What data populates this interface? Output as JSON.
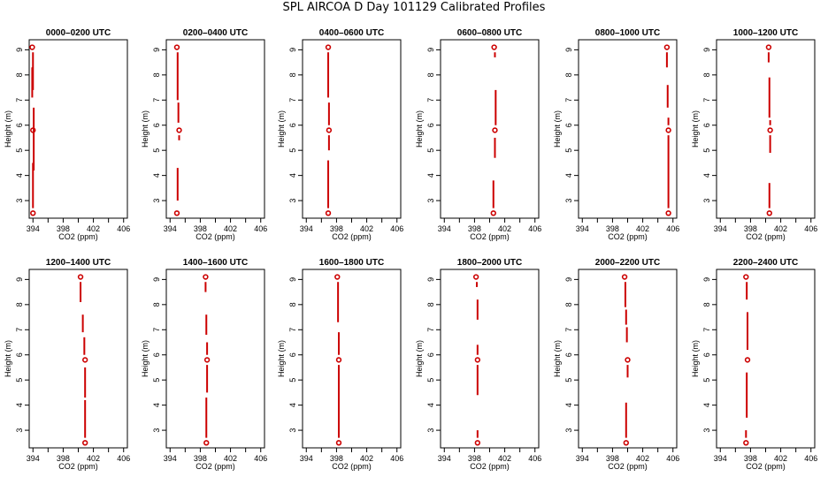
{
  "title": "SPL AIRCOA D  Day 101129  Calibrated Profiles",
  "colors": {
    "profile": "#cc0000",
    "axis": "#000000"
  },
  "chart_data": [
    {
      "type": "line",
      "title": "0000–0200 UTC",
      "xlabel": "CO2 (ppm)",
      "ylabel": "Height (m)",
      "xlim": [
        393.5,
        406.5
      ],
      "ylim": [
        2.3,
        9.4
      ],
      "xticks": [
        394,
        398,
        402,
        406
      ],
      "yticks": [
        3,
        4,
        5,
        6,
        7,
        8,
        9
      ],
      "points": [
        {
          "x": 393.9,
          "y": 9.1
        },
        {
          "x": 394.0,
          "y": 5.8
        },
        {
          "x": 394.0,
          "y": 2.5
        }
      ],
      "segments": [
        {
          "x": 394.0,
          "y0": 8.9,
          "y1": 7.4
        },
        {
          "x": 393.9,
          "y0": 8.3,
          "y1": 7.1
        },
        {
          "x": 394.1,
          "y0": 6.7,
          "y1": 4.2
        },
        {
          "x": 394.0,
          "y0": 4.5,
          "y1": 2.7
        }
      ]
    },
    {
      "type": "line",
      "title": "0200–0400 UTC",
      "xlabel": "CO2 (ppm)",
      "ylabel": "Height (m)",
      "xlim": [
        393.5,
        406.5
      ],
      "ylim": [
        2.3,
        9.4
      ],
      "xticks": [
        394,
        398,
        402,
        406
      ],
      "yticks": [
        3,
        4,
        5,
        6,
        7,
        8,
        9
      ],
      "points": [
        {
          "x": 394.9,
          "y": 9.1
        },
        {
          "x": 395.2,
          "y": 5.8
        },
        {
          "x": 394.9,
          "y": 2.5
        }
      ],
      "segments": [
        {
          "x": 395.0,
          "y0": 8.9,
          "y1": 7.0
        },
        {
          "x": 395.1,
          "y0": 6.9,
          "y1": 6.1
        },
        {
          "x": 395.2,
          "y0": 5.6,
          "y1": 5.4
        },
        {
          "x": 395.0,
          "y0": 4.3,
          "y1": 3.0
        }
      ]
    },
    {
      "type": "line",
      "title": "0400–0600 UTC",
      "xlabel": "CO2 (ppm)",
      "ylabel": "Height (m)",
      "xlim": [
        393.5,
        406.5
      ],
      "ylim": [
        2.3,
        9.4
      ],
      "xticks": [
        394,
        398,
        402,
        406
      ],
      "yticks": [
        3,
        4,
        5,
        6,
        7,
        8,
        9
      ],
      "points": [
        {
          "x": 396.9,
          "y": 9.1
        },
        {
          "x": 397.0,
          "y": 5.8
        },
        {
          "x": 396.9,
          "y": 2.5
        }
      ],
      "segments": [
        {
          "x": 396.9,
          "y0": 8.9,
          "y1": 7.1
        },
        {
          "x": 397.0,
          "y0": 6.9,
          "y1": 6.0
        },
        {
          "x": 397.0,
          "y0": 5.6,
          "y1": 5.0
        },
        {
          "x": 396.9,
          "y0": 4.6,
          "y1": 2.7
        }
      ]
    },
    {
      "type": "line",
      "title": "0600–0800 UTC",
      "xlabel": "CO2 (ppm)",
      "ylabel": "Height (m)",
      "xlim": [
        393.5,
        406.5
      ],
      "ylim": [
        2.3,
        9.4
      ],
      "xticks": [
        394,
        398,
        402,
        406
      ],
      "yticks": [
        3,
        4,
        5,
        6,
        7,
        8,
        9
      ],
      "points": [
        {
          "x": 400.6,
          "y": 9.1
        },
        {
          "x": 400.7,
          "y": 5.8
        },
        {
          "x": 400.5,
          "y": 2.5
        }
      ],
      "segments": [
        {
          "x": 400.7,
          "y0": 8.9,
          "y1": 8.7
        },
        {
          "x": 400.8,
          "y0": 7.4,
          "y1": 6.0
        },
        {
          "x": 400.7,
          "y0": 5.5,
          "y1": 4.7
        },
        {
          "x": 400.5,
          "y0": 3.8,
          "y1": 2.7
        }
      ]
    },
    {
      "type": "line",
      "title": "0800–1000 UTC",
      "xlabel": "CO2 (ppm)",
      "ylabel": "Height (m)",
      "xlim": [
        393.5,
        406.5
      ],
      "ylim": [
        2.3,
        9.4
      ],
      "xticks": [
        394,
        398,
        402,
        406
      ],
      "yticks": [
        3,
        4,
        5,
        6,
        7,
        8,
        9
      ],
      "points": [
        {
          "x": 405.2,
          "y": 9.1
        },
        {
          "x": 405.4,
          "y": 5.8
        },
        {
          "x": 405.4,
          "y": 2.5
        }
      ],
      "segments": [
        {
          "x": 405.2,
          "y0": 8.9,
          "y1": 8.3
        },
        {
          "x": 405.3,
          "y0": 7.6,
          "y1": 6.7
        },
        {
          "x": 405.4,
          "y0": 6.3,
          "y1": 6.0
        },
        {
          "x": 405.4,
          "y0": 5.6,
          "y1": 2.7
        }
      ]
    },
    {
      "type": "line",
      "title": "1000–1200 UTC",
      "xlabel": "CO2 (ppm)",
      "ylabel": "Height (m)",
      "xlim": [
        393.5,
        406.5
      ],
      "ylim": [
        2.3,
        9.4
      ],
      "xticks": [
        394,
        398,
        402,
        406
      ],
      "yticks": [
        3,
        4,
        5,
        6,
        7,
        8,
        9
      ],
      "points": [
        {
          "x": 400.4,
          "y": 9.1
        },
        {
          "x": 400.6,
          "y": 5.8
        },
        {
          "x": 400.5,
          "y": 2.5
        }
      ],
      "segments": [
        {
          "x": 400.4,
          "y0": 8.9,
          "y1": 8.5
        },
        {
          "x": 400.5,
          "y0": 7.9,
          "y1": 6.3
        },
        {
          "x": 400.6,
          "y0": 6.2,
          "y1": 6.0
        },
        {
          "x": 400.6,
          "y0": 5.6,
          "y1": 4.9
        },
        {
          "x": 400.5,
          "y0": 3.7,
          "y1": 2.7
        }
      ]
    },
    {
      "type": "line",
      "title": "1200–1400 UTC",
      "xlabel": "CO2 (ppm)",
      "ylabel": "Height (m)",
      "xlim": [
        393.5,
        406.5
      ],
      "ylim": [
        2.3,
        9.4
      ],
      "xticks": [
        394,
        398,
        402,
        406
      ],
      "yticks": [
        3,
        4,
        5,
        6,
        7,
        8,
        9
      ],
      "points": [
        {
          "x": 400.3,
          "y": 9.1
        },
        {
          "x": 400.9,
          "y": 5.8
        },
        {
          "x": 400.9,
          "y": 2.5
        }
      ],
      "segments": [
        {
          "x": 400.3,
          "y0": 8.9,
          "y1": 8.1
        },
        {
          "x": 400.6,
          "y0": 7.6,
          "y1": 6.9
        },
        {
          "x": 400.8,
          "y0": 6.7,
          "y1": 6.0
        },
        {
          "x": 400.9,
          "y0": 5.5,
          "y1": 4.3
        },
        {
          "x": 400.9,
          "y0": 4.2,
          "y1": 2.7
        }
      ]
    },
    {
      "type": "line",
      "title": "1400–1600 UTC",
      "xlabel": "CO2 (ppm)",
      "ylabel": "Height (m)",
      "xlim": [
        393.5,
        406.5
      ],
      "ylim": [
        2.3,
        9.4
      ],
      "xticks": [
        394,
        398,
        402,
        406
      ],
      "yticks": [
        3,
        4,
        5,
        6,
        7,
        8,
        9
      ],
      "points": [
        {
          "x": 398.7,
          "y": 9.1
        },
        {
          "x": 398.9,
          "y": 5.8
        },
        {
          "x": 398.8,
          "y": 2.5
        }
      ],
      "segments": [
        {
          "x": 398.7,
          "y0": 8.9,
          "y1": 8.5
        },
        {
          "x": 398.8,
          "y0": 7.6,
          "y1": 6.8
        },
        {
          "x": 398.9,
          "y0": 6.5,
          "y1": 6.0
        },
        {
          "x": 398.9,
          "y0": 5.6,
          "y1": 4.5
        },
        {
          "x": 398.8,
          "y0": 4.3,
          "y1": 2.7
        }
      ]
    },
    {
      "type": "line",
      "title": "1600–1800 UTC",
      "xlabel": "CO2 (ppm)",
      "ylabel": "Height (m)",
      "xlim": [
        393.5,
        406.5
      ],
      "ylim": [
        2.3,
        9.4
      ],
      "xticks": [
        394,
        398,
        402,
        406
      ],
      "yticks": [
        3,
        4,
        5,
        6,
        7,
        8,
        9
      ],
      "points": [
        {
          "x": 398.1,
          "y": 9.1
        },
        {
          "x": 398.3,
          "y": 5.8
        },
        {
          "x": 398.3,
          "y": 2.5
        }
      ],
      "segments": [
        {
          "x": 398.2,
          "y0": 8.9,
          "y1": 7.3
        },
        {
          "x": 398.3,
          "y0": 6.9,
          "y1": 6.0
        },
        {
          "x": 398.3,
          "y0": 5.6,
          "y1": 2.7
        }
      ]
    },
    {
      "type": "line",
      "title": "1800–2000 UTC",
      "xlabel": "CO2 (ppm)",
      "ylabel": "Height (m)",
      "xlim": [
        393.5,
        406.5
      ],
      "ylim": [
        2.3,
        9.4
      ],
      "xticks": [
        394,
        398,
        402,
        406
      ],
      "yticks": [
        3,
        4,
        5,
        6,
        7,
        8,
        9
      ],
      "points": [
        {
          "x": 398.2,
          "y": 9.1
        },
        {
          "x": 398.4,
          "y": 5.8
        },
        {
          "x": 398.4,
          "y": 2.5
        }
      ],
      "segments": [
        {
          "x": 398.3,
          "y0": 8.9,
          "y1": 8.7
        },
        {
          "x": 398.4,
          "y0": 8.2,
          "y1": 7.4
        },
        {
          "x": 398.4,
          "y0": 6.4,
          "y1": 6.0
        },
        {
          "x": 398.4,
          "y0": 5.6,
          "y1": 4.4
        },
        {
          "x": 398.4,
          "y0": 3.0,
          "y1": 2.7
        }
      ]
    },
    {
      "type": "line",
      "title": "2000–2200 UTC",
      "xlabel": "CO2 (ppm)",
      "ylabel": "Height (m)",
      "xlim": [
        393.5,
        406.5
      ],
      "ylim": [
        2.3,
        9.4
      ],
      "xticks": [
        394,
        398,
        402,
        406
      ],
      "yticks": [
        3,
        4,
        5,
        6,
        7,
        8,
        9
      ],
      "points": [
        {
          "x": 399.6,
          "y": 9.1
        },
        {
          "x": 400.0,
          "y": 5.8
        },
        {
          "x": 399.8,
          "y": 2.5
        }
      ],
      "segments": [
        {
          "x": 399.7,
          "y0": 8.9,
          "y1": 7.9
        },
        {
          "x": 399.8,
          "y0": 7.8,
          "y1": 7.2
        },
        {
          "x": 399.9,
          "y0": 7.1,
          "y1": 6.5
        },
        {
          "x": 400.0,
          "y0": 5.6,
          "y1": 5.1
        },
        {
          "x": 399.8,
          "y0": 4.1,
          "y1": 2.7
        }
      ]
    },
    {
      "type": "line",
      "title": "2200–2400 UTC",
      "xlabel": "CO2 (ppm)",
      "ylabel": "Height (m)",
      "xlim": [
        393.5,
        406.5
      ],
      "ylim": [
        2.3,
        9.4
      ],
      "xticks": [
        394,
        398,
        402,
        406
      ],
      "yticks": [
        3,
        4,
        5,
        6,
        7,
        8,
        9
      ],
      "points": [
        {
          "x": 397.4,
          "y": 9.1
        },
        {
          "x": 397.6,
          "y": 5.8
        },
        {
          "x": 397.4,
          "y": 2.5
        }
      ],
      "segments": [
        {
          "x": 397.5,
          "y0": 8.9,
          "y1": 8.2
        },
        {
          "x": 397.6,
          "y0": 7.7,
          "y1": 6.2
        },
        {
          "x": 397.5,
          "y0": 5.3,
          "y1": 3.5
        },
        {
          "x": 397.4,
          "y0": 3.0,
          "y1": 2.7
        }
      ]
    }
  ]
}
